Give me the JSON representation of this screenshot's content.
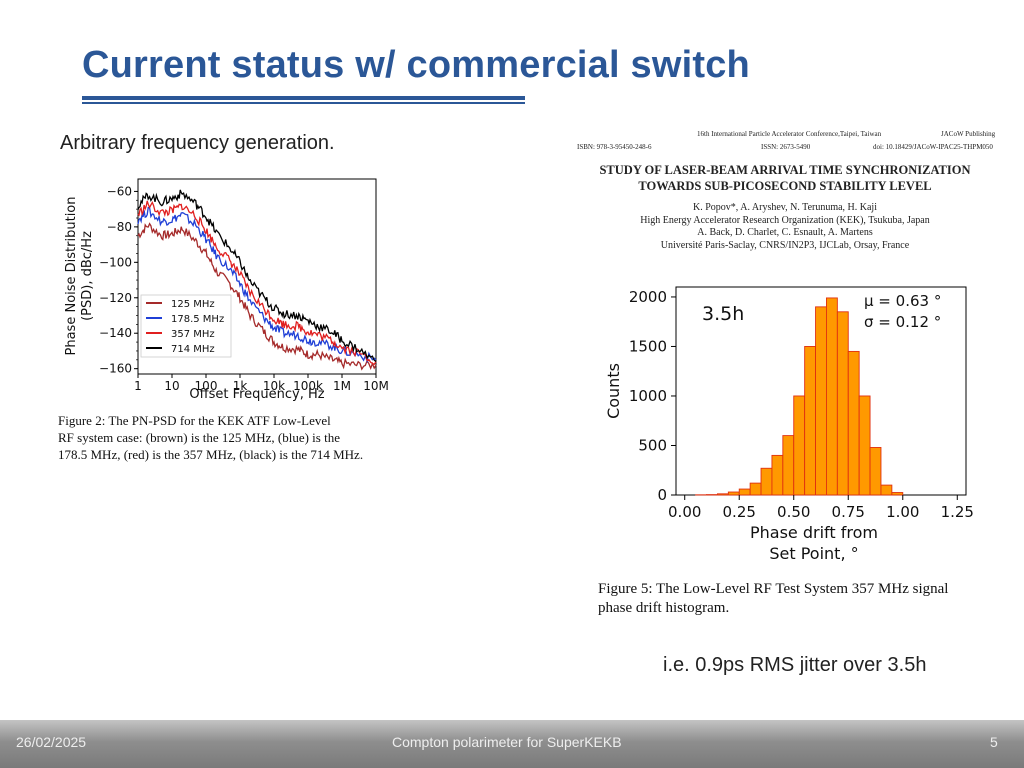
{
  "slide": {
    "title": "Current status w/ commercial switch",
    "subtitle": "Arbitrary frequency generation.",
    "note": "i.e. 0.9ps RMS jitter over 3.5h",
    "date": "26/02/2025",
    "footer_text": "Compton polarimeter for SuperKEKB",
    "page_number": "5",
    "accent_color": "#2b5797"
  },
  "paper": {
    "conference": "16th International Particle Accelerator Conference,Taipei, Taiwan",
    "publisher": "JACoW Publishing",
    "isbn": "ISBN: 978-3-95450-248-6",
    "issn": "ISSN: 2673-5490",
    "doi": "doi: 10.18429/JACoW-IPAC25-THPM050",
    "title_line1": "STUDY OF LASER-BEAM ARRIVAL TIME SYNCHRONIZATION",
    "title_line2": "TOWARDS SUB-PICOSECOND STABILITY LEVEL",
    "authors1": "K. Popov*, A. Aryshev, N. Terunuma, H. Kaji",
    "affil1": "High Energy Accelerator Research Organization (KEK), Tsukuba, Japan",
    "authors2": "A. Back, D. Charlet, C. Esnault, A. Martens",
    "affil2": "Université Paris-Saclay, CNRS/IN2P3, IJCLab, Orsay, France"
  },
  "figure2": {
    "caption_line1": "Figure 2:  The PN-PSD for the KEK ATF Low-Level",
    "caption_line2": "RF system case:  (brown) is the 125 MHz, (blue) is the",
    "caption_line3": "178.5 MHz, (red) is the 357 MHz, (black) is the 714 MHz."
  },
  "figure5": {
    "caption_line1": "Figure 5:  The Low-Level RF Test System 357 MHz signal",
    "caption_line2": "phase drift histogram.",
    "annotation": "3.5h",
    "mu_label": "μ = 0.63 °",
    "sigma_label": "σ = 0.12 °"
  },
  "chart_data": [
    {
      "type": "line",
      "xlabel": "Offset Frequency, Hz",
      "ylabel_line1": "Phase Noise Distribution",
      "ylabel_line2": "(PSD), dBc/Hz",
      "x_scale": "log",
      "xlim": [
        1,
        10000000
      ],
      "ylim": [
        -163,
        -53
      ],
      "x_ticks": [
        "1",
        "10",
        "100",
        "1k",
        "10k",
        "100k",
        "1M",
        "10M"
      ],
      "y_ticks": [
        "−60",
        "−80",
        "−100",
        "−120",
        "−140",
        "−160"
      ],
      "y_tick_values": [
        -60,
        -80,
        -100,
        -120,
        -140,
        -160
      ],
      "legend_position": "bottom-left",
      "series": [
        {
          "name": "125 MHz",
          "color": "#a52a2a",
          "x": [
            1,
            2,
            5,
            10,
            20,
            50,
            100,
            200,
            500,
            1000,
            2000,
            5000,
            10000,
            20000,
            50000,
            100000,
            200000,
            500000,
            1000000,
            3000000,
            10000000
          ],
          "y": [
            -85,
            -79,
            -85,
            -84,
            -81,
            -88,
            -95,
            -105,
            -112,
            -120,
            -130,
            -139,
            -145,
            -148,
            -149,
            -152,
            -152,
            -155,
            -157,
            -158,
            -158
          ]
        },
        {
          "name": "178.5 MHz",
          "color": "#1f3fd6",
          "x": [
            1,
            2,
            5,
            10,
            20,
            50,
            100,
            200,
            500,
            1000,
            2000,
            5000,
            10000,
            20000,
            50000,
            100000,
            200000,
            500000,
            1000000,
            3000000,
            10000000
          ],
          "y": [
            -76,
            -71,
            -77,
            -76,
            -73,
            -79,
            -87,
            -96,
            -104,
            -112,
            -122,
            -131,
            -137,
            -140,
            -141,
            -144,
            -145,
            -147,
            -150,
            -152,
            -155
          ]
        },
        {
          "name": "357 MHz",
          "color": "#e01f1f",
          "x": [
            1,
            2,
            5,
            10,
            20,
            50,
            100,
            200,
            500,
            1000,
            2000,
            5000,
            10000,
            20000,
            50000,
            100000,
            200000,
            500000,
            1000000,
            3000000,
            10000000
          ],
          "y": [
            -73,
            -67,
            -72,
            -71,
            -68,
            -74,
            -82,
            -91,
            -99,
            -107,
            -117,
            -126,
            -132,
            -135,
            -136,
            -139,
            -141,
            -144,
            -148,
            -151,
            -156
          ]
        },
        {
          "name": "714 MHz",
          "color": "#000000",
          "x": [
            1,
            2,
            5,
            10,
            20,
            50,
            100,
            200,
            500,
            1000,
            2000,
            5000,
            10000,
            20000,
            50000,
            100000,
            200000,
            500000,
            1000000,
            3000000,
            10000000
          ],
          "y": [
            -68,
            -62,
            -66,
            -64,
            -61,
            -67,
            -74,
            -83,
            -92,
            -100,
            -111,
            -120,
            -126,
            -129,
            -130,
            -133,
            -136,
            -139,
            -144,
            -149,
            -156
          ]
        }
      ]
    },
    {
      "type": "bar",
      "xlabel_line1": "Phase drift from",
      "xlabel_line2": "Set Point, °",
      "ylabel": "Counts",
      "xlim": [
        0,
        1.25
      ],
      "ylim": [
        0,
        2050
      ],
      "x_ticks": [
        "0.00",
        "0.25",
        "0.50",
        "0.75",
        "1.00",
        "1.25"
      ],
      "x_tick_values": [
        0,
        0.25,
        0.5,
        0.75,
        1.0,
        1.25
      ],
      "y_ticks": [
        "0",
        "500",
        "1000",
        "1500",
        "2000"
      ],
      "y_tick_values": [
        0,
        500,
        1000,
        1500,
        2000
      ],
      "bin_width": 0.05,
      "bin_starts": [
        0.05,
        0.1,
        0.15,
        0.2,
        0.25,
        0.3,
        0.35,
        0.4,
        0.45,
        0.5,
        0.55,
        0.6,
        0.65,
        0.7,
        0.75,
        0.8,
        0.85,
        0.9,
        0.95
      ],
      "counts": [
        2,
        4,
        12,
        30,
        60,
        120,
        270,
        400,
        600,
        1000,
        1500,
        1900,
        1990,
        1850,
        1450,
        1000,
        480,
        100,
        25
      ],
      "bar_color": "#ff9900",
      "edge_color": "#e03010"
    }
  ]
}
